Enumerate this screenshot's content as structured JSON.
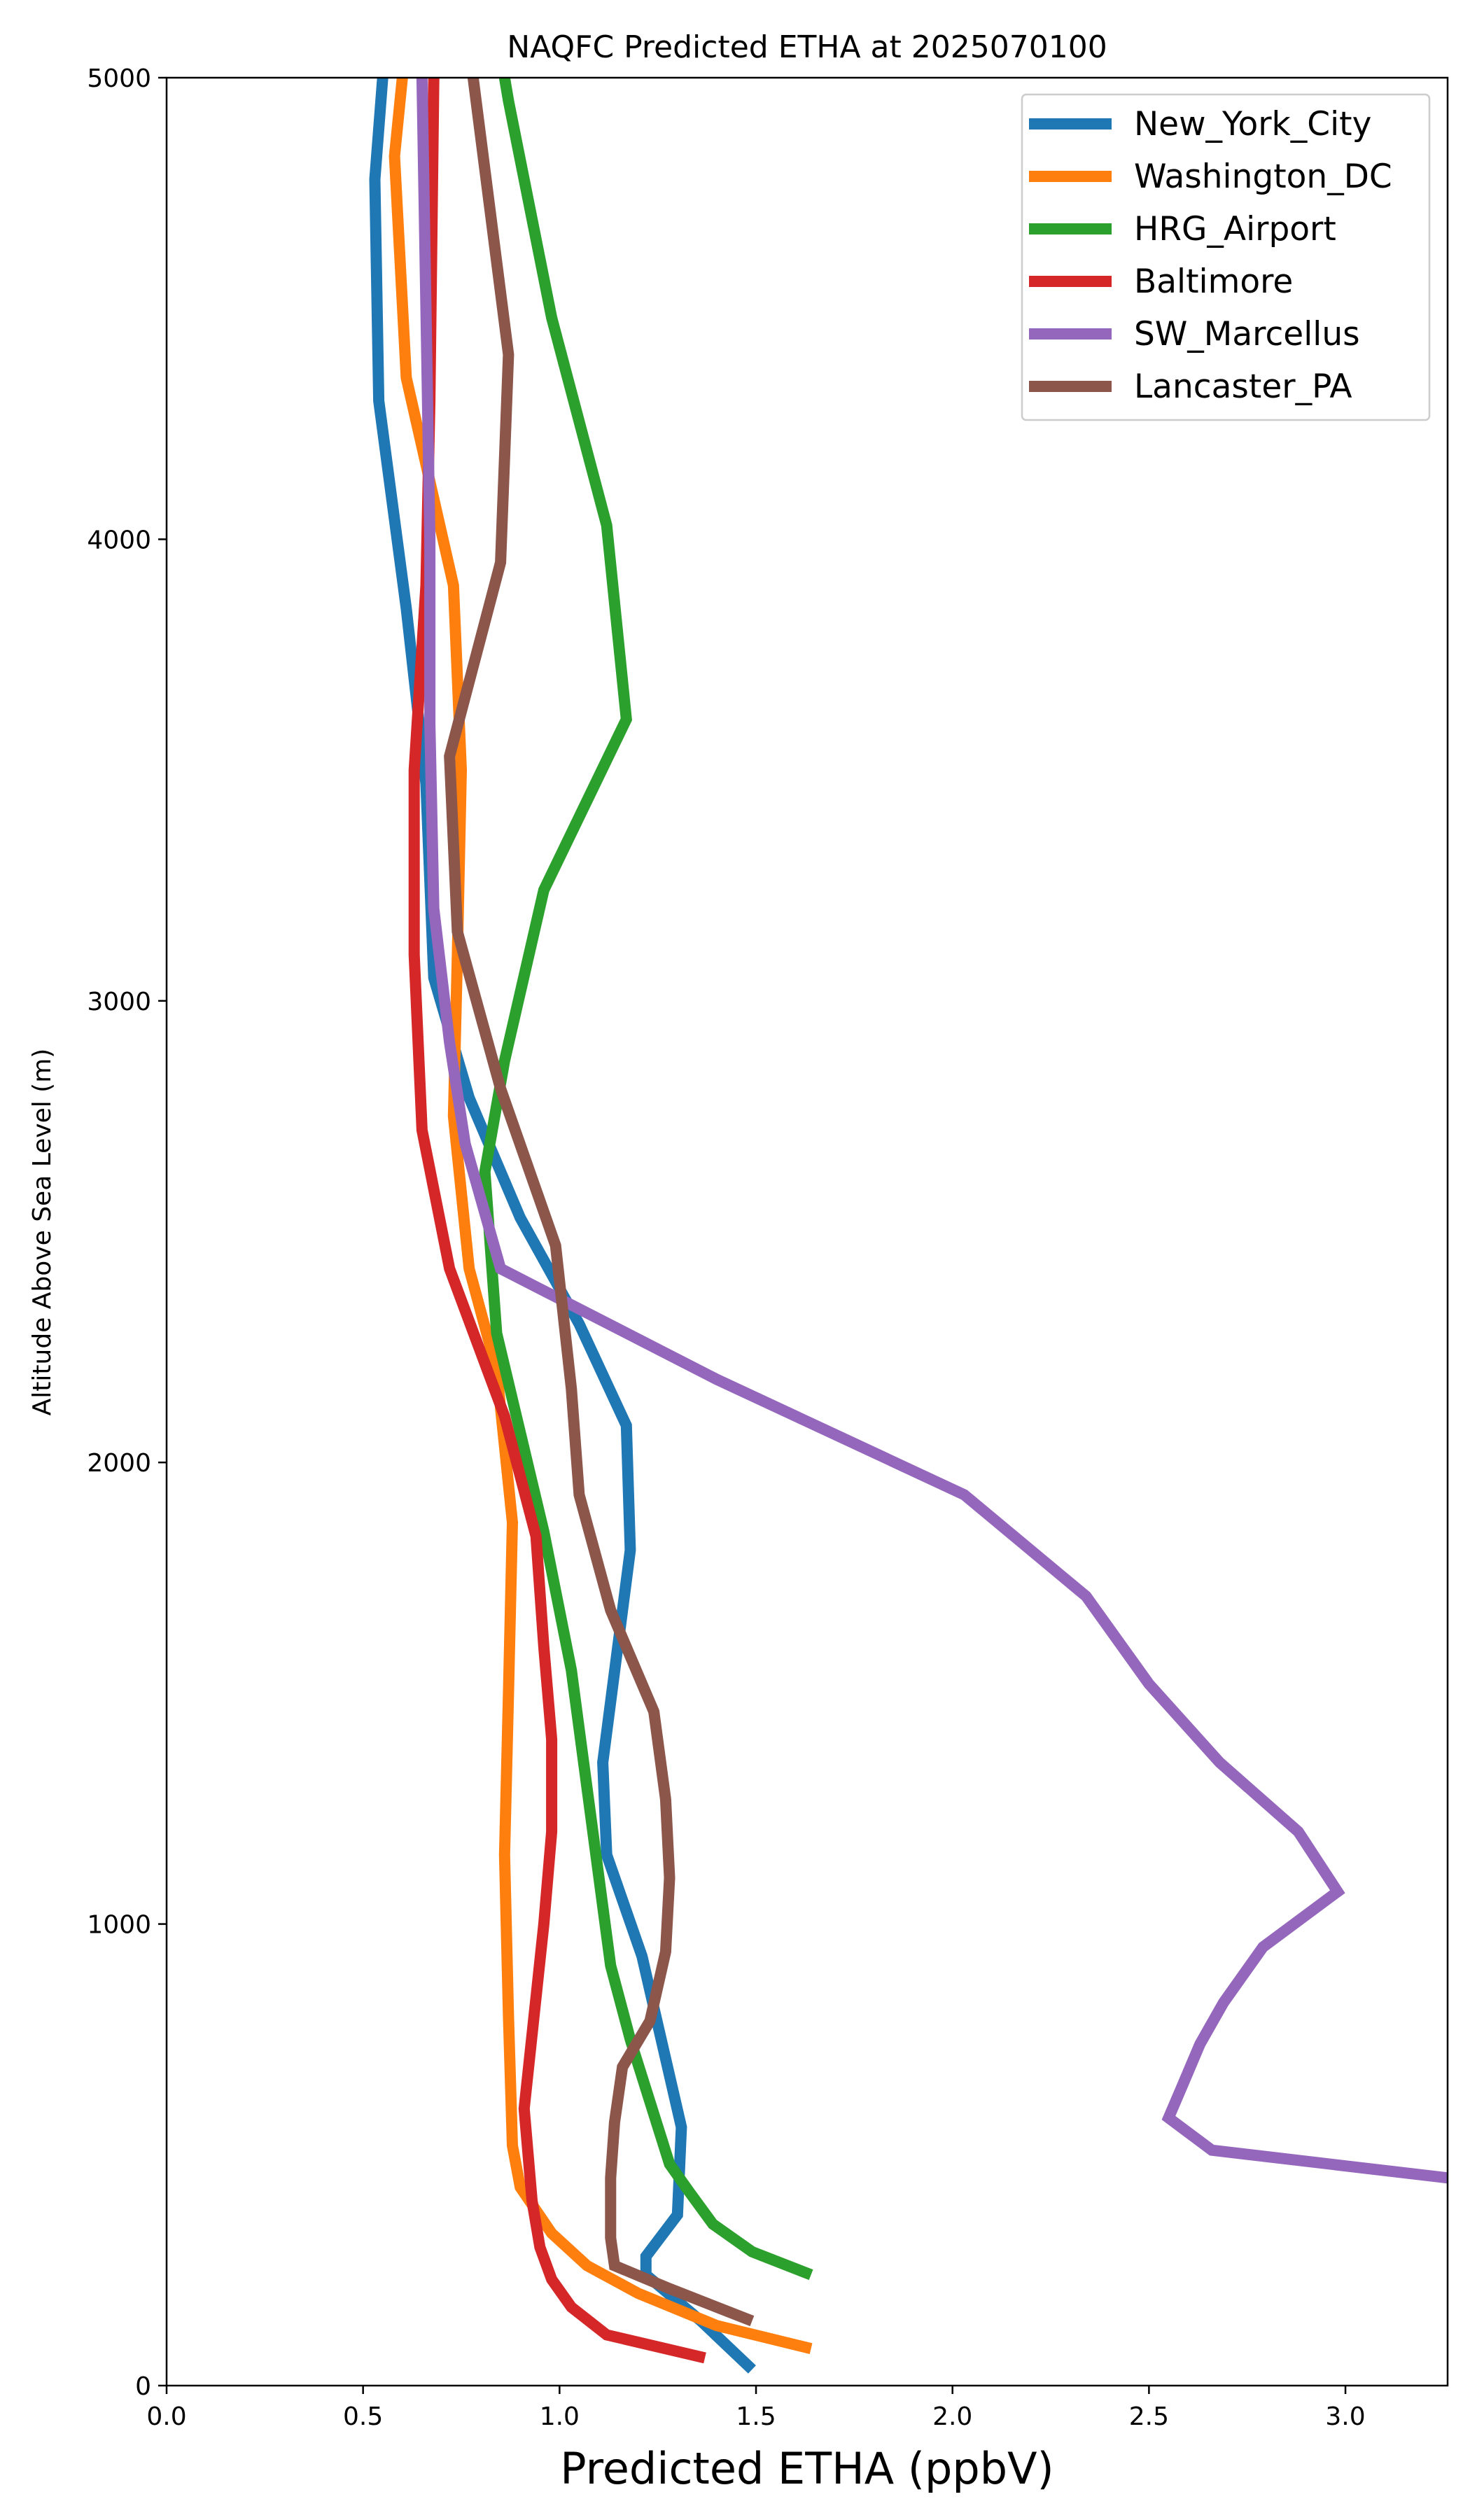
{
  "chart_data": {
    "type": "line",
    "title": "NAQFC Predicted ETHA at 2025070100",
    "xlabel": "Predicted ETHA (ppbV)",
    "ylabel": "Altitude Above Sea Level (m)",
    "xlim": [
      0.0,
      3.26
    ],
    "ylim": [
      0,
      5000
    ],
    "xticks": [
      "0.0",
      "0.5",
      "1.0",
      "1.5",
      "2.0",
      "2.5",
      "3.0"
    ],
    "yticks": [
      "0",
      "1000",
      "2000",
      "3000",
      "4000",
      "5000"
    ],
    "grid": false,
    "legend_position": "top-right",
    "series": [
      {
        "name": "New_York_City",
        "color": "#1f77b4",
        "points": [
          [
            1.49,
            35
          ],
          [
            1.36,
            140
          ],
          [
            1.22,
            240
          ],
          [
            1.22,
            280
          ],
          [
            1.3,
            370
          ],
          [
            1.31,
            560
          ],
          [
            1.21,
            930
          ],
          [
            1.12,
            1150
          ],
          [
            1.11,
            1350
          ],
          [
            1.18,
            1810
          ],
          [
            1.17,
            2080
          ],
          [
            1.05,
            2300
          ],
          [
            0.9,
            2530
          ],
          [
            0.77,
            2790
          ],
          [
            0.68,
            3050
          ],
          [
            0.66,
            3470
          ],
          [
            0.61,
            3850
          ],
          [
            0.54,
            4300
          ],
          [
            0.53,
            4780
          ],
          [
            0.55,
            5000
          ]
        ]
      },
      {
        "name": "Washington_DC",
        "color": "#ff7f0e",
        "points": [
          [
            1.64,
            80
          ],
          [
            1.4,
            130
          ],
          [
            1.2,
            200
          ],
          [
            1.07,
            260
          ],
          [
            0.98,
            330
          ],
          [
            0.9,
            430
          ],
          [
            0.88,
            520
          ],
          [
            0.87,
            800
          ],
          [
            0.86,
            1150
          ],
          [
            0.87,
            1500
          ],
          [
            0.88,
            1870
          ],
          [
            0.84,
            2200
          ],
          [
            0.77,
            2420
          ],
          [
            0.73,
            2750
          ],
          [
            0.74,
            3100
          ],
          [
            0.75,
            3500
          ],
          [
            0.73,
            3900
          ],
          [
            0.61,
            4350
          ],
          [
            0.58,
            4830
          ],
          [
            0.6,
            5000
          ]
        ]
      },
      {
        "name": "HRG_Airport",
        "color": "#2ca02c",
        "points": [
          [
            1.64,
            240
          ],
          [
            1.49,
            290
          ],
          [
            1.39,
            350
          ],
          [
            1.33,
            420
          ],
          [
            1.28,
            480
          ],
          [
            1.18,
            750
          ],
          [
            1.13,
            910
          ],
          [
            1.03,
            1550
          ],
          [
            0.96,
            1850
          ],
          [
            0.84,
            2280
          ],
          [
            0.81,
            2630
          ],
          [
            0.86,
            2870
          ],
          [
            0.96,
            3240
          ],
          [
            1.17,
            3610
          ],
          [
            1.12,
            4030
          ],
          [
            0.98,
            4480
          ],
          [
            0.87,
            4950
          ],
          [
            0.86,
            5000
          ]
        ]
      },
      {
        "name": "Baltimore",
        "color": "#d62728",
        "points": [
          [
            1.37,
            60
          ],
          [
            1.12,
            110
          ],
          [
            1.03,
            170
          ],
          [
            0.98,
            230
          ],
          [
            0.95,
            300
          ],
          [
            0.93,
            400
          ],
          [
            0.91,
            600
          ],
          [
            0.96,
            1000
          ],
          [
            0.98,
            1200
          ],
          [
            0.98,
            1400
          ],
          [
            0.96,
            1600
          ],
          [
            0.94,
            1840
          ],
          [
            0.86,
            2100
          ],
          [
            0.72,
            2420
          ],
          [
            0.65,
            2720
          ],
          [
            0.63,
            3100
          ],
          [
            0.63,
            3500
          ],
          [
            0.66,
            3900
          ],
          [
            0.67,
            4300
          ],
          [
            0.68,
            5000
          ]
        ]
      },
      {
        "name": "SW_Marcellus",
        "color": "#9467bd",
        "points": [
          [
            3.26,
            450
          ],
          [
            2.66,
            510
          ],
          [
            2.55,
            580
          ],
          [
            2.58,
            640
          ],
          [
            2.63,
            740
          ],
          [
            2.69,
            830
          ],
          [
            2.79,
            950
          ],
          [
            2.98,
            1070
          ],
          [
            2.88,
            1200
          ],
          [
            2.68,
            1350
          ],
          [
            2.5,
            1520
          ],
          [
            2.34,
            1710
          ],
          [
            2.03,
            1930
          ],
          [
            1.4,
            2180
          ],
          [
            0.85,
            2420
          ],
          [
            0.76,
            2690
          ],
          [
            0.72,
            2910
          ],
          [
            0.68,
            3200
          ],
          [
            0.67,
            3600
          ],
          [
            0.67,
            4000
          ],
          [
            0.66,
            4500
          ],
          [
            0.65,
            5000
          ]
        ]
      },
      {
        "name": "Lancaster_PA",
        "color": "#8c564b",
        "points": [
          [
            1.49,
            140
          ],
          [
            1.28,
            210
          ],
          [
            1.14,
            260
          ],
          [
            1.13,
            320
          ],
          [
            1.13,
            450
          ],
          [
            1.14,
            570
          ],
          [
            1.16,
            690
          ],
          [
            1.23,
            790
          ],
          [
            1.27,
            940
          ],
          [
            1.28,
            1100
          ],
          [
            1.27,
            1270
          ],
          [
            1.24,
            1460
          ],
          [
            1.13,
            1680
          ],
          [
            1.05,
            1930
          ],
          [
            1.03,
            2160
          ],
          [
            0.99,
            2470
          ],
          [
            0.85,
            2810
          ],
          [
            0.74,
            3150
          ],
          [
            0.72,
            3530
          ],
          [
            0.85,
            3950
          ],
          [
            0.87,
            4400
          ],
          [
            0.78,
            5000
          ]
        ]
      }
    ]
  }
}
